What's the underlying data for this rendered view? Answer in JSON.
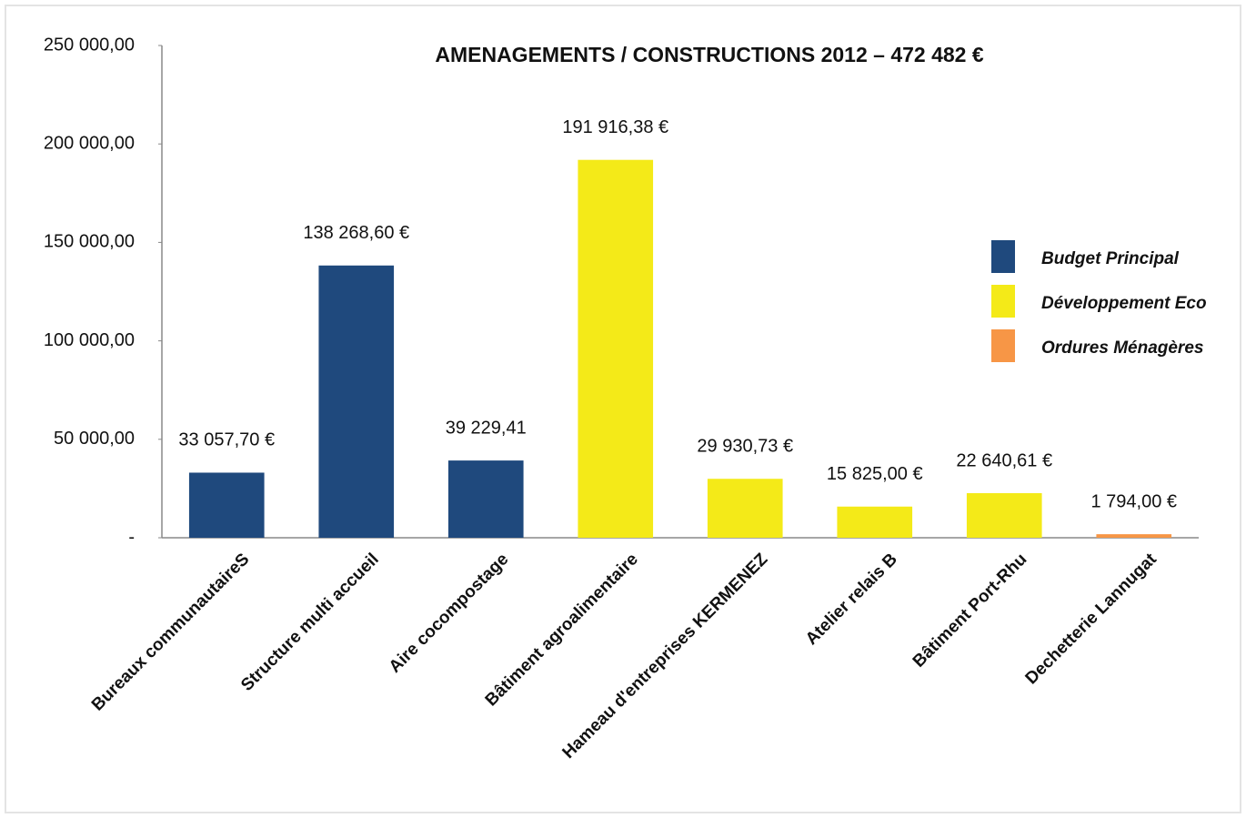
{
  "chart_data": {
    "type": "bar",
    "title": "AMENAGEMENTS / CONSTRUCTIONS 2012 – 472 482 €",
    "categories": [
      "Bureaux communautaireS",
      "Structure multi accueil",
      "Aire cocompostage",
      "Bâtiment agroalimentaire",
      "Hameau d'entreprises KERMENEZ",
      "Atelier relais B",
      "Bâtiment Port-Rhu",
      "Dechetterie Lannugat"
    ],
    "series": [
      {
        "name": "Budget Principal",
        "color": "#1f497d",
        "values": [
          33057.7,
          138268.6,
          39229.41,
          null,
          null,
          null,
          null,
          null
        ],
        "value_labels": [
          "33 057,70 €",
          "138 268,60 €",
          "39 229,41",
          null,
          null,
          null,
          null,
          null
        ]
      },
      {
        "name": "Développement Eco",
        "color": "#f4ea18",
        "values": [
          null,
          null,
          null,
          191916.38,
          29930.73,
          15825.0,
          22640.61,
          null
        ],
        "value_labels": [
          null,
          null,
          null,
          "191 916,38 €",
          "29 930,73 €",
          "15 825,00 €",
          "22 640,61 €",
          null
        ]
      },
      {
        "name": "Ordures Ménagères",
        "color": "#f79646",
        "values": [
          null,
          null,
          null,
          null,
          null,
          null,
          null,
          1794.0
        ],
        "value_labels": [
          null,
          null,
          null,
          null,
          null,
          null,
          null,
          "1 794,00 €"
        ]
      }
    ],
    "ylim": [
      0,
      250000
    ],
    "yticks": [
      {
        "value": 0,
        "label": "-"
      },
      {
        "value": 50000,
        "label": "50 000,00"
      },
      {
        "value": 100000,
        "label": "100 000,00"
      },
      {
        "value": 150000,
        "label": "150 000,00"
      },
      {
        "value": 200000,
        "label": "200 000,00"
      },
      {
        "value": 250000,
        "label": "250 000,00"
      }
    ],
    "grid": false,
    "legend": "right"
  }
}
